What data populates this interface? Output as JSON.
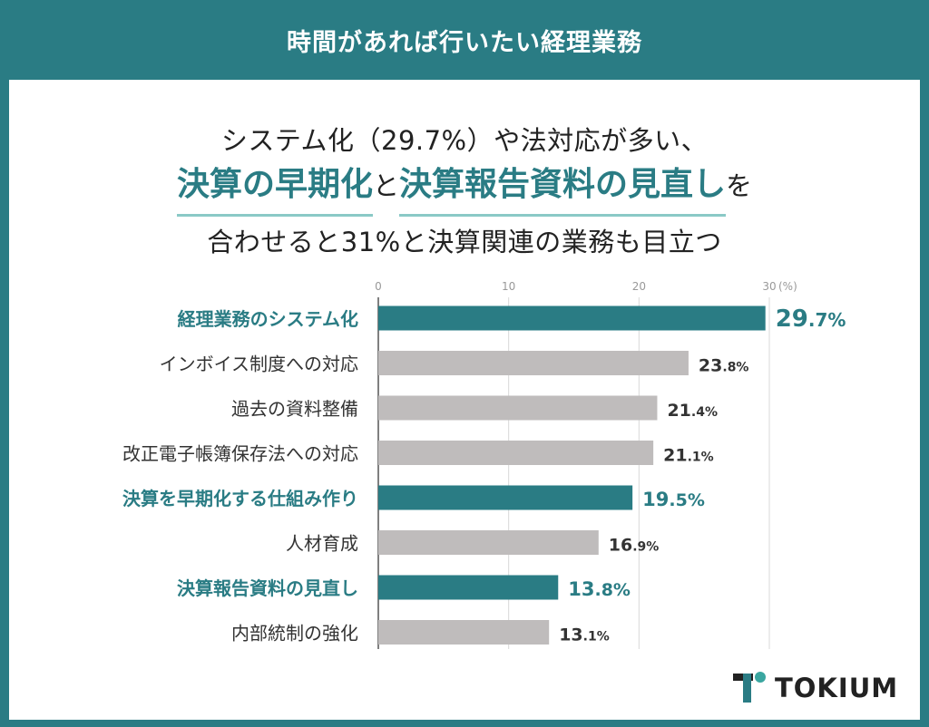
{
  "header": {
    "title": "時間があれば行いたい経理業務"
  },
  "subtitle": {
    "line1": "システム化（29.7%）や法対応が多い、",
    "line2_hl1": "決算の早期化",
    "line2_mid": "と",
    "line2_hl2": "決算報告資料の見直し",
    "line2_end": "を",
    "line3": "合わせると31%と決算関連の業務も目立つ"
  },
  "colors": {
    "accent": "#2a7c84",
    "grey_bar": "#bfbcbc",
    "highlight_underline": "#8ac9c6"
  },
  "chart_data": {
    "type": "bar",
    "orientation": "horizontal",
    "unit": "(%)",
    "xlim": [
      0,
      30
    ],
    "ticks": [
      0,
      10,
      20,
      30
    ],
    "grid": true,
    "categories": [
      "経理業務のシステム化",
      "インボイス制度への対応",
      "過去の資料整備",
      "改正電子帳簿保存法への対応",
      "決算を早期化する仕組み作り",
      "人材育成",
      "決算報告資料の見直し",
      "内部統制の強化"
    ],
    "values": [
      29.7,
      23.8,
      21.4,
      21.1,
      19.5,
      16.9,
      13.8,
      13.1
    ],
    "highlighted": [
      true,
      false,
      false,
      false,
      true,
      false,
      true,
      false
    ]
  },
  "logo": {
    "icon": "tokium-logo-icon",
    "text": "TOKIUM"
  }
}
